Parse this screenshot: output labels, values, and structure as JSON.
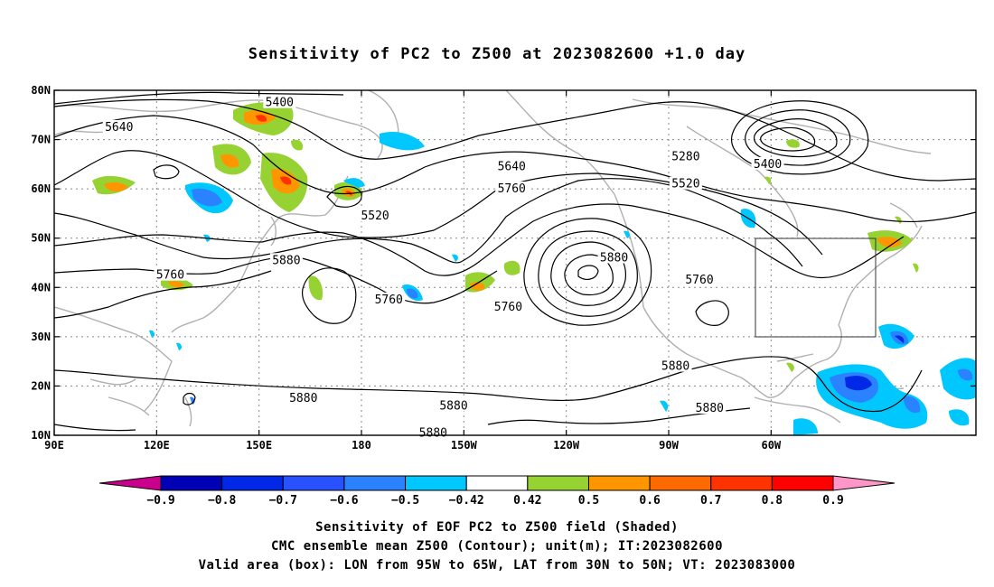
{
  "title": "Sensitivity of PC2 to Z500 at 2023082600 +1.0 day",
  "map": {
    "lon_ticks": [
      "90E",
      "120E",
      "150E",
      "180",
      "150W",
      "120W",
      "90W",
      "60W"
    ],
    "lat_ticks": [
      "80N",
      "70N",
      "60N",
      "50N",
      "40N",
      "30N",
      "20N",
      "10N"
    ],
    "contour_labels": [
      {
        "text": "5400",
        "lon": 156,
        "lat": 77.5
      },
      {
        "text": "5640",
        "lon": 109,
        "lat": 72.5
      },
      {
        "text": "5520",
        "lon": -176,
        "lat": 54.5
      },
      {
        "text": "5640",
        "lon": -136,
        "lat": 64.5
      },
      {
        "text": "5760",
        "lon": -136,
        "lat": 60.0
      },
      {
        "text": "5880",
        "lon": 158,
        "lat": 45.5
      },
      {
        "text": "5760",
        "lon": 124,
        "lat": 42.5
      },
      {
        "text": "5760",
        "lon": -172,
        "lat": 37.5
      },
      {
        "text": "5760",
        "lon": -137,
        "lat": 36.0
      },
      {
        "text": "5880",
        "lon": -106,
        "lat": 46.0
      },
      {
        "text": "5280",
        "lon": -85,
        "lat": 66.5
      },
      {
        "text": "5520",
        "lon": -85,
        "lat": 61.0
      },
      {
        "text": "5400",
        "lon": -61,
        "lat": 65.0
      },
      {
        "text": "5760",
        "lon": -81,
        "lat": 41.5
      },
      {
        "text": "5880",
        "lon": 163,
        "lat": 17.5
      },
      {
        "text": "5880",
        "lon": -153,
        "lat": 16.0
      },
      {
        "text": "5880",
        "lon": -159,
        "lat": 10.5
      },
      {
        "text": "5880",
        "lon": -88,
        "lat": 24.0
      },
      {
        "text": "5880",
        "lon": -78,
        "lat": 15.5
      }
    ]
  },
  "colorbar": {
    "labels": [
      "-0.9",
      "-0.8",
      "-0.7",
      "-0.6",
      "-0.5",
      "-0.42",
      "0.42",
      "0.5",
      "0.6",
      "0.7",
      "0.8",
      "0.9"
    ],
    "colors": [
      "#0000b4",
      "#0028e6",
      "#2852ff",
      "#2a82ff",
      "#00c8ff",
      "#ffffff",
      "#96d232",
      "#ff9600",
      "#ff6a00",
      "#ff3200",
      "#ff0000"
    ],
    "low_extend": "#c8008c",
    "high_extend": "#ff96c8"
  },
  "captions": {
    "line1": "Sensitivity of EOF PC2 to Z500 field (Shaded)",
    "line2": "CMC ensemble mean Z500 (Contour); unit(m); IT:2023082600",
    "line3": "Valid area (box): LON from 95W to 65W, LAT from 30N to 50N; VT: 2023083000"
  }
}
